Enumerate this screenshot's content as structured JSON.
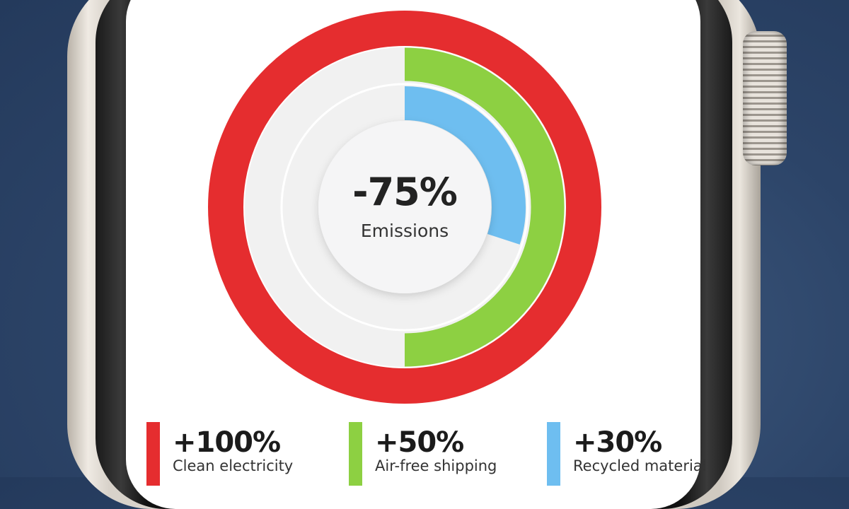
{
  "chart_data": {
    "type": "radial-bar",
    "center": {
      "value": "-75%",
      "label": "Emissions"
    },
    "series": [
      {
        "name": "Clean electricity",
        "value": 100,
        "display": "+100%",
        "color": "#e52d2f"
      },
      {
        "name": "Air-free shipping",
        "value": 50,
        "display": "+50%",
        "color": "#8dd042"
      },
      {
        "name": "Recycled material",
        "value": 30,
        "display": "+30%",
        "color": "#6ebef0"
      }
    ],
    "range": [
      0,
      100
    ],
    "track_color": "#f1f1f1",
    "legend_placement": "bottom"
  }
}
